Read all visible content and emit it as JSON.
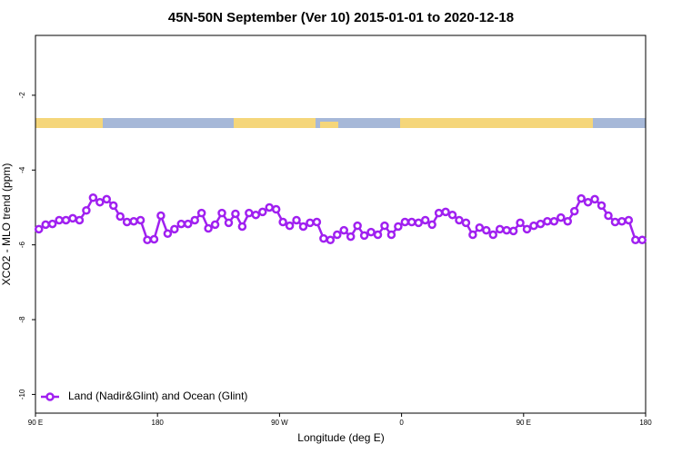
{
  "chart_data": {
    "type": "line",
    "title": "45N-50N September (Ver 10)   2015-01-01 to 2020-12-18",
    "x_label": "Longitude (deg E)",
    "y_label": "XCO2 - MLO trend (ppm)",
    "xlim": [
      90,
      540
    ],
    "xticks": [
      {
        "value": 90,
        "label": "90 E"
      },
      {
        "value": 180,
        "label": "180"
      },
      {
        "value": 270,
        "label": "90 W"
      },
      {
        "value": 360,
        "label": "0"
      },
      {
        "value": 450,
        "label": "90 E"
      },
      {
        "value": 540,
        "label": "180"
      }
    ],
    "ylim": [
      -10.5,
      -0.4
    ],
    "yticks": [
      -2,
      -4,
      -6,
      -8,
      -10
    ],
    "legend": "bottom-left",
    "x": [
      92.5,
      97.5,
      102.5,
      107.5,
      112.5,
      117.5,
      122.5,
      127.5,
      132.5,
      137.5,
      142.5,
      147.5,
      152.5,
      157.5,
      162.5,
      167.5,
      172.5,
      177.5,
      182.5,
      187.5,
      192.5,
      197.5,
      202.5,
      207.5,
      212.5,
      217.5,
      222.5,
      227.5,
      232.5,
      237.5,
      242.5,
      247.5,
      252.5,
      257.5,
      262.5,
      267.5,
      272.5,
      277.5,
      282.5,
      287.5,
      292.5,
      297.5,
      302.5,
      307.5,
      312.5,
      317.5,
      322.5,
      327.5,
      332.5,
      337.5,
      342.5,
      347.5,
      352.5,
      357.5,
      362.5,
      367.5,
      372.5,
      377.5,
      382.5,
      387.5,
      392.5,
      397.5,
      402.5,
      407.5,
      412.5,
      417.5,
      422.5,
      427.5,
      432.5,
      437.5,
      442.5,
      447.5,
      452.5,
      457.5,
      462.5,
      467.5,
      472.5,
      477.5,
      482.5,
      487.5,
      492.5,
      497.5,
      502.5,
      507.5,
      512.5,
      517.5,
      522.5,
      527.5,
      532.5,
      537.5
    ],
    "series": [
      {
        "name": "Land (Nadir&Glint) and Ocean (Glint)",
        "color": "#a020f0",
        "values": [
          -5.58,
          -5.46,
          -5.44,
          -5.34,
          -5.34,
          -5.29,
          -5.34,
          -5.08,
          -4.74,
          -4.86,
          -4.78,
          -4.95,
          -5.24,
          -5.39,
          -5.37,
          -5.34,
          -5.87,
          -5.85,
          -5.22,
          -5.7,
          -5.58,
          -5.44,
          -5.44,
          -5.34,
          -5.15,
          -5.56,
          -5.46,
          -5.15,
          -5.41,
          -5.17,
          -5.51,
          -5.15,
          -5.2,
          -5.12,
          -5.0,
          -5.05,
          -5.39,
          -5.49,
          -5.34,
          -5.51,
          -5.41,
          -5.39,
          -5.83,
          -5.87,
          -5.73,
          -5.61,
          -5.78,
          -5.49,
          -5.75,
          -5.66,
          -5.73,
          -5.49,
          -5.73,
          -5.51,
          -5.39,
          -5.39,
          -5.41,
          -5.34,
          -5.46,
          -5.15,
          -5.12,
          -5.2,
          -5.34,
          -5.41,
          -5.73,
          -5.54,
          -5.61,
          -5.73,
          -5.58,
          -5.61,
          -5.63,
          -5.41,
          -5.58,
          -5.49,
          -5.44,
          -5.37,
          -5.37,
          -5.27,
          -5.37,
          -5.1,
          -4.76,
          -4.86,
          -4.78,
          -4.95,
          -5.22,
          -5.39,
          -5.37,
          -5.34,
          -5.87,
          -5.87
        ]
      }
    ]
  }
}
